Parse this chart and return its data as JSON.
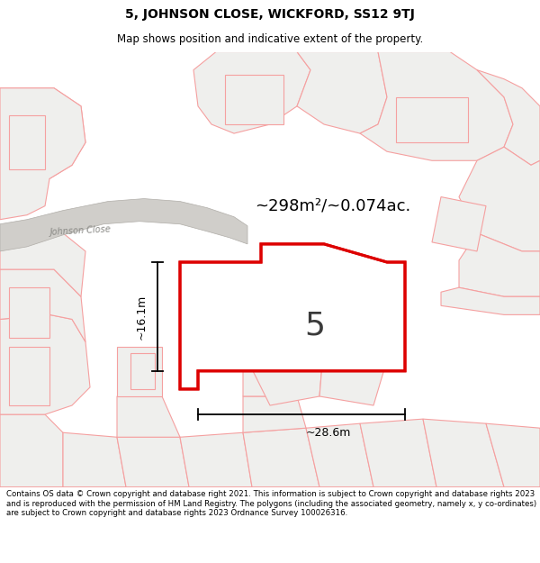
{
  "title": "5, JOHNSON CLOSE, WICKFORD, SS12 9TJ",
  "subtitle": "Map shows position and indicative extent of the property.",
  "footer": "Contains OS data © Crown copyright and database right 2021. This information is subject to Crown copyright and database rights 2023 and is reproduced with the permission of HM Land Registry. The polygons (including the associated geometry, namely x, y co-ordinates) are subject to Crown copyright and database rights 2023 Ordnance Survey 100026316.",
  "bg_color": "#f7f6f4",
  "parcel_fill": "#efefed",
  "building_fill": "#d8d7d5",
  "road_fill": "#d0ceca",
  "plot_edge_other": "#f5a0a0",
  "plot_edge_main": "#dd0000",
  "area_text": "~298m²/~0.074ac.",
  "label_number": "5",
  "dim_width": "~28.6m",
  "dim_height": "~16.1m",
  "title_fontsize": 10,
  "subtitle_fontsize": 8.5,
  "footer_fontsize": 6.2,
  "johnson_close_label": "Johnson Close"
}
